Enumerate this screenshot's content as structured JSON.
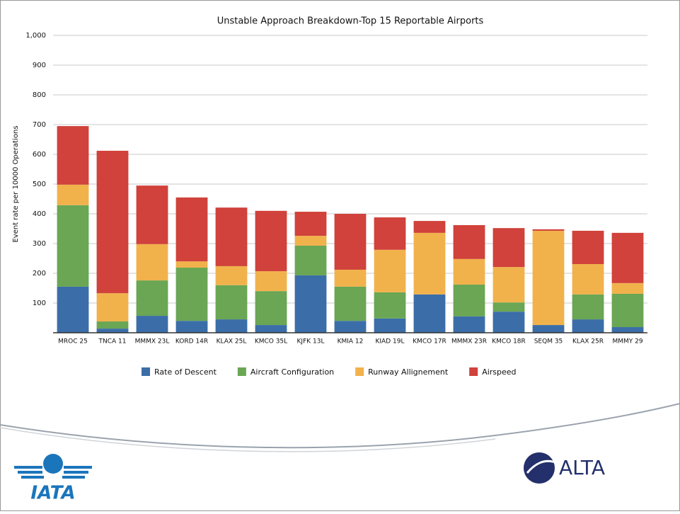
{
  "chart_data": {
    "type": "stacked_bar",
    "title": "Unstable Approach Breakdown-Top 15 Reportable Airports",
    "y_label": "Event rate per 10000 Operations",
    "categories": [
      "MROC 25",
      "TNCA 11",
      "MMMX 23L",
      "KORD 14R",
      "KLAX 25L",
      "KMCO 35L",
      "KJFK 13L",
      "KMIA 12",
      "KIAD 19L",
      "KMCO 17R",
      "MMMX 23R",
      "KMCO 18R",
      "SEQM 35",
      "KLAX 25R",
      "MMMY 29"
    ],
    "series": [
      {
        "name": "Rate of Descent",
        "color": "#3b6ea8",
        "values": [
          155,
          14,
          57,
          40,
          45,
          26,
          193,
          40,
          48,
          129,
          55,
          71,
          26,
          45,
          19
        ]
      },
      {
        "name": "Aircraft Configuration",
        "color": "#6aa654",
        "values": [
          274,
          24,
          119,
          179,
          115,
          114,
          100,
          115,
          88,
          0,
          107,
          31,
          0,
          84,
          112
        ]
      },
      {
        "name": "Runway Allignement",
        "color": "#f1b24c",
        "values": [
          69,
          95,
          122,
          21,
          64,
          67,
          33,
          57,
          143,
          207,
          86,
          119,
          317,
          102,
          36
        ]
      },
      {
        "name": "Airspeed",
        "color": "#d0423b",
        "values": [
          197,
          479,
          197,
          215,
          197,
          203,
          81,
          188,
          109,
          40,
          114,
          131,
          5,
          112,
          169
        ]
      }
    ],
    "ylim": [
      0,
      1000
    ],
    "yticks": [
      100,
      200,
      300,
      400,
      500,
      600,
      700,
      800,
      900,
      {
        "value": 1000,
        "label": "1,000"
      }
    ],
    "grid": true,
    "legend": "bottom"
  },
  "footer": {
    "left_logo": "IATA",
    "right_logo": "ALTA"
  }
}
